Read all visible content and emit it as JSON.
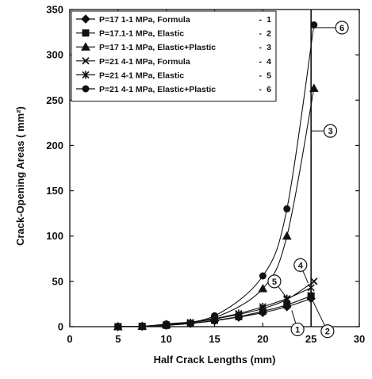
{
  "chart_data": {
    "type": "line",
    "title": "",
    "xlabel": "Half Crack Lengths (mm)",
    "ylabel": "Crack-Opening Areas ( mm²)",
    "xlim": [
      0,
      30
    ],
    "ylim": [
      0,
      350
    ],
    "x_ticks": [
      "0",
      "5",
      "10",
      "15",
      "20",
      "25",
      "30"
    ],
    "y_ticks": [
      "0",
      "50",
      "100",
      "150",
      "200",
      "250",
      "300",
      "350"
    ],
    "grid": false,
    "legend_position": "top-left",
    "vertical_line_x": 25,
    "series": [
      {
        "name": "P=17 1-1 MPa, Formula",
        "number": "1",
        "marker": "diamond",
        "x": [
          5,
          7.5,
          10,
          12.5,
          15,
          17.5,
          20,
          22.5,
          25
        ],
        "y": [
          0,
          0.3,
          1.5,
          3.5,
          6.5,
          10.5,
          15.5,
          22,
          31
        ]
      },
      {
        "name": "P=17.1-1 MPa, Elastic",
        "number": "2",
        "marker": "square",
        "x": [
          5,
          7.5,
          10,
          12.5,
          15,
          17.5,
          20,
          22.5,
          25
        ],
        "y": [
          0,
          0.3,
          1.5,
          3.5,
          7,
          11,
          17,
          24,
          34
        ]
      },
      {
        "name": "P=17 1-1 MPa, Elastic+Plastic",
        "number": "3",
        "marker": "triangle",
        "x": [
          5,
          7.5,
          10,
          15,
          20,
          22.5,
          25.3
        ],
        "y": [
          0,
          0.5,
          2.5,
          10,
          42,
          100,
          263
        ]
      },
      {
        "name": "P=21 4-1 MPa, Formula",
        "number": "4",
        "marker": "x",
        "x": [
          5,
          7.5,
          10,
          12.5,
          15,
          17.5,
          20,
          22.5,
          25.3
        ],
        "y": [
          0,
          0.4,
          2,
          4.5,
          8.5,
          13.5,
          20,
          30,
          50
        ]
      },
      {
        "name": "P=21 4-1 MPa, Elastic",
        "number": "5",
        "marker": "star",
        "x": [
          5,
          7.5,
          10,
          12.5,
          15,
          17.5,
          20,
          22.5,
          25
        ],
        "y": [
          0,
          0.4,
          2,
          4.5,
          9,
          14.5,
          22,
          31,
          43
        ]
      },
      {
        "name": "P=21 4-1 MPa, Elastic+Plastic",
        "number": "6",
        "marker": "circle",
        "x": [
          5,
          7.5,
          10,
          15,
          20,
          22.5,
          25.3
        ],
        "y": [
          0,
          0.5,
          3,
          12,
          56,
          130,
          333
        ]
      }
    ],
    "callouts": [
      {
        "label": "1",
        "x": 23.6,
        "y": -3
      },
      {
        "label": "2",
        "x": 26.7,
        "y": -5
      },
      {
        "label": "3",
        "x": 27.0,
        "y": 216
      },
      {
        "label": "4",
        "x": 23.9,
        "y": 68
      },
      {
        "label": "5",
        "x": 21.2,
        "y": 50
      },
      {
        "label": "6",
        "x": 28.2,
        "y": 330
      }
    ]
  }
}
